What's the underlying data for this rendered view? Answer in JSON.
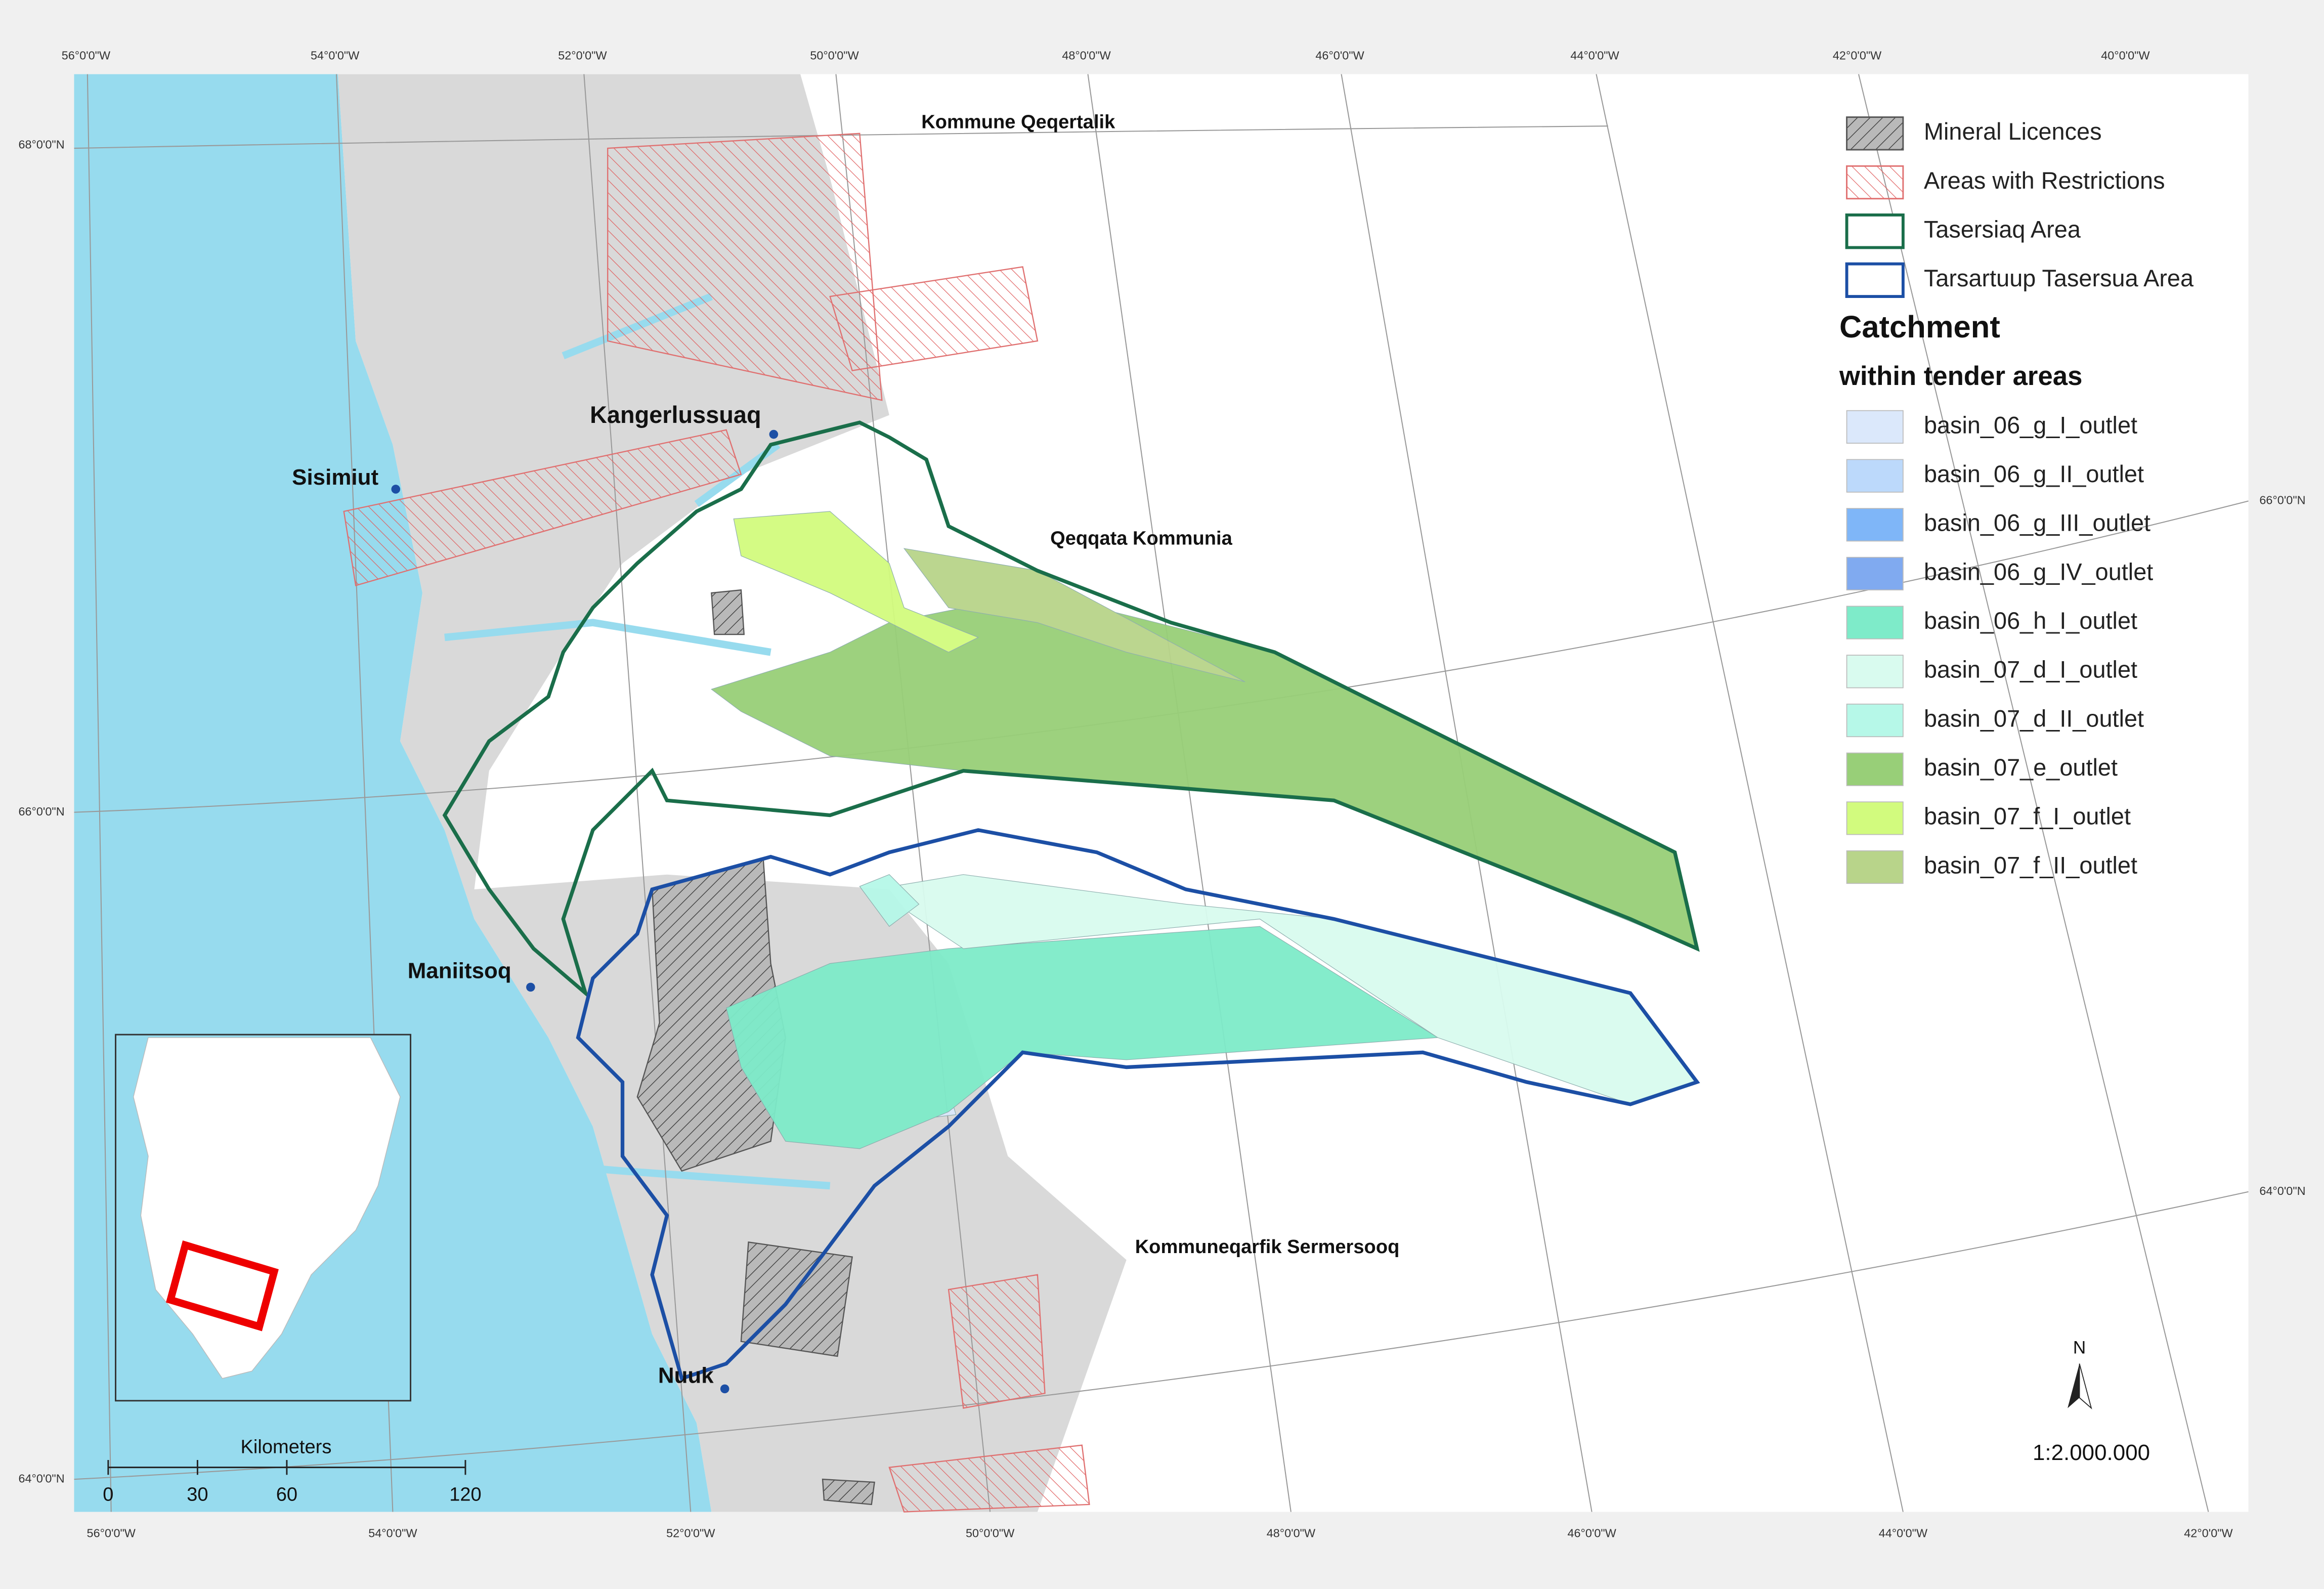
{
  "graticule": {
    "top": [
      "56°0'0\"W",
      "54°0'0\"W",
      "52°0'0\"W",
      "50°0'0\"W",
      "48°0'0\"W",
      "46°0'0\"W",
      "44°0'0\"W",
      "42°0'0\"W",
      "40°0'0\"W"
    ],
    "bottom": [
      "56°0'0\"W",
      "54°0'0\"W",
      "52°0'0\"W",
      "50°0'0\"W",
      "48°0'0\"W",
      "46°0'0\"W",
      "44°0'0\"W",
      "42°0'0\"W"
    ],
    "left": [
      "68°0'0\"N",
      "66°0'0\"N",
      "64°0'0\"N"
    ],
    "right": [
      "66°0'0\"N",
      "64°0'0\"N"
    ]
  },
  "places": [
    "Kommune Qeqertalik",
    "Kangerlussuaq",
    "Sisimiut",
    "Qeqqata Kommunia",
    "Maniitsoq",
    "Kommuneqarfik Sermersooq",
    "Nuuk"
  ],
  "legend": {
    "layers": [
      "Mineral Licences",
      "Areas with Restrictions",
      "Tasersiaq Area",
      "Tarsartuup Tasersua Area"
    ],
    "heading": "Catchment",
    "subheading": "within tender areas",
    "basins": [
      {
        "name": "basin_06_g_I_outlet",
        "color": "#dbe8fb"
      },
      {
        "name": "basin_06_g_II_outlet",
        "color": "#bcd9fb"
      },
      {
        "name": "basin_06_g_III_outlet",
        "color": "#7fb6f8"
      },
      {
        "name": "basin_06_g_IV_outlet",
        "color": "#80aaf0"
      },
      {
        "name": "basin_06_h_I_outlet",
        "color": "#7eebc9"
      },
      {
        "name": "basin_07_d_I_outlet",
        "color": "#d9fbef"
      },
      {
        "name": "basin_07_d_II_outlet",
        "color": "#b6f8e8"
      },
      {
        "name": "basin_07_e_outlet",
        "color": "#98cf78"
      },
      {
        "name": "basin_07_f_I_outlet",
        "color": "#d2fb7e"
      },
      {
        "name": "basin_07_f_II_outlet",
        "color": "#b8d48a"
      }
    ]
  },
  "scale_bar": {
    "title": "Kilometers",
    "ticks": [
      0,
      30,
      60,
      120
    ]
  },
  "north": "N",
  "scale": "1:2.000.000"
}
